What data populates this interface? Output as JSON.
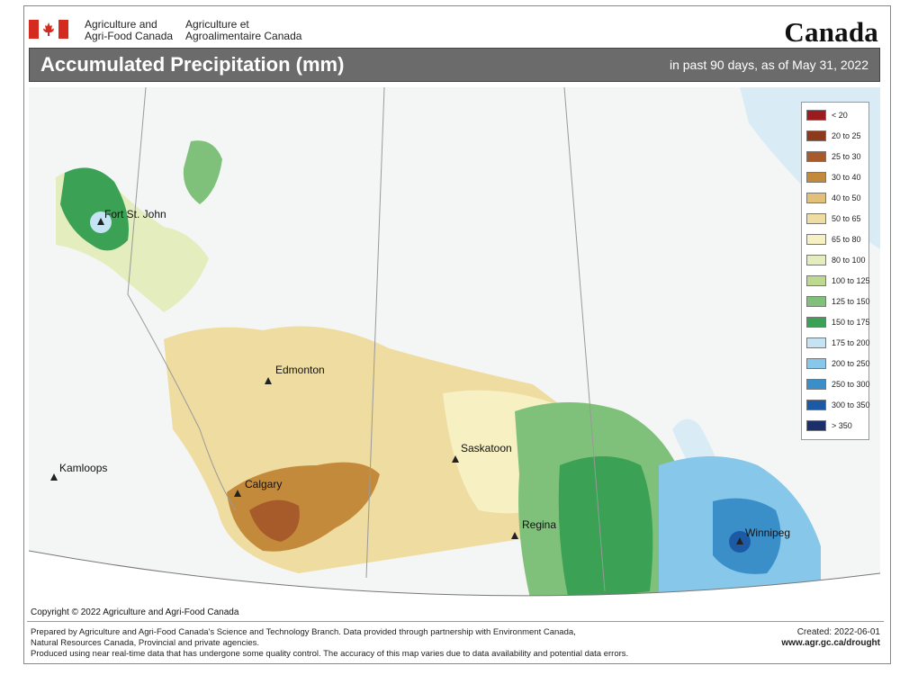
{
  "header": {
    "department_en": [
      "Agriculture and",
      "Agri-Food Canada"
    ],
    "department_fr": [
      "Agriculture et",
      "Agroalimentaire Canada"
    ],
    "wordmark": "Canada"
  },
  "map_title": "Accumulated Precipitation (mm)",
  "map_subtitle": "in past 90 days, as of May 31, 2022",
  "cities": [
    {
      "name": "Fort St. John"
    },
    {
      "name": "Edmonton"
    },
    {
      "name": "Kamloops"
    },
    {
      "name": "Calgary"
    },
    {
      "name": "Saskatoon"
    },
    {
      "name": "Regina"
    },
    {
      "name": "Winnipeg"
    }
  ],
  "legend": [
    {
      "label": "< 20",
      "color": "#9b1b1f"
    },
    {
      "label": "20 to 25",
      "color": "#8c3a1a"
    },
    {
      "label": "25 to 30",
      "color": "#a75a2a"
    },
    {
      "label": "30 to 40",
      "color": "#c48a3c"
    },
    {
      "label": "40 to 50",
      "color": "#e2c07a"
    },
    {
      "label": "50 to 65",
      "color": "#efdca0"
    },
    {
      "label": "65 to 80",
      "color": "#f6f0c2"
    },
    {
      "label": "80 to 100",
      "color": "#e3edbd"
    },
    {
      "label": "100 to 125",
      "color": "#bcd98f"
    },
    {
      "label": "125 to 150",
      "color": "#7fc17a"
    },
    {
      "label": "150 to 175",
      "color": "#3aa155"
    },
    {
      "label": "175 to 200",
      "color": "#c4e4f3"
    },
    {
      "label": "200 to 250",
      "color": "#86c7ea"
    },
    {
      "label": "250 to 300",
      "color": "#3b8fc9"
    },
    {
      "label": "300 to 350",
      "color": "#1c5aa6"
    },
    {
      "label": "> 350",
      "color": "#1b2f6b"
    }
  ],
  "copyright": "Copyright © 2022 Agriculture and Agri-Food Canada",
  "footer": {
    "lines": [
      "Prepared by Agriculture and Agri-Food Canada's Science and Technology Branch. Data provided through partnership with Environment Canada,",
      "Natural Resources Canada, Provincial and private agencies.",
      "Produced using near real-time data that has undergone some quality control. The accuracy of this map varies due to data availability and potential data errors."
    ],
    "created": "Created: 2022-06-01",
    "url": "www.agr.gc.ca/drought"
  }
}
